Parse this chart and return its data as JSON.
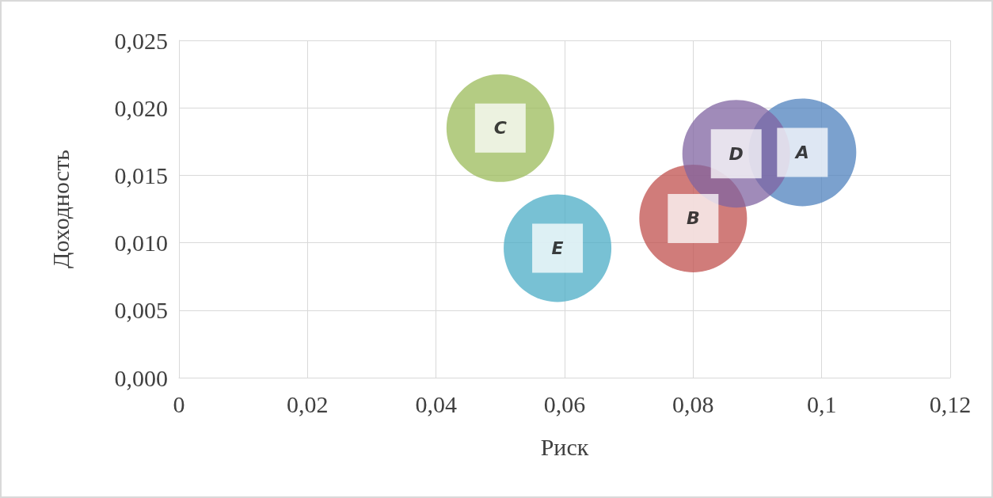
{
  "chart_data": {
    "type": "bubble",
    "xlabel": "Риск",
    "ylabel": "Доходность",
    "xlim": [
      0,
      0.12
    ],
    "ylim": [
      0,
      0.025
    ],
    "xticks": [
      {
        "value": 0,
        "label": "0"
      },
      {
        "value": 0.02,
        "label": "0,02"
      },
      {
        "value": 0.04,
        "label": "0,04"
      },
      {
        "value": 0.06,
        "label": "0,06"
      },
      {
        "value": 0.08,
        "label": "0,08"
      },
      {
        "value": 0.1,
        "label": "0,1"
      },
      {
        "value": 0.12,
        "label": "0,12"
      }
    ],
    "yticks": [
      {
        "value": 0,
        "label": "0,000"
      },
      {
        "value": 0.005,
        "label": "0,005"
      },
      {
        "value": 0.01,
        "label": "0,010"
      },
      {
        "value": 0.015,
        "label": "0,015"
      },
      {
        "value": 0.02,
        "label": "0,020"
      },
      {
        "value": 0.025,
        "label": "0,025"
      }
    ],
    "grid": true,
    "legend": false,
    "series": [
      {
        "name": "A",
        "color": "#4f81bd",
        "x": [
          0.097
        ],
        "values": [
          0.0167
        ],
        "sizes": [
          1
        ]
      },
      {
        "name": "B",
        "color": "#c0504d",
        "x": [
          0.08
        ],
        "values": [
          0.0118
        ],
        "sizes": [
          1
        ]
      },
      {
        "name": "C",
        "color": "#9bbb59",
        "x": [
          0.05
        ],
        "values": [
          0.0185
        ],
        "sizes": [
          1
        ]
      },
      {
        "name": "D",
        "color": "#8064a2",
        "x": [
          0.0867
        ],
        "values": [
          0.0166
        ],
        "sizes": [
          1
        ]
      },
      {
        "name": "E",
        "color": "#4bacc6",
        "x": [
          0.0589
        ],
        "values": [
          0.0096
        ],
        "sizes": [
          1
        ]
      }
    ]
  }
}
